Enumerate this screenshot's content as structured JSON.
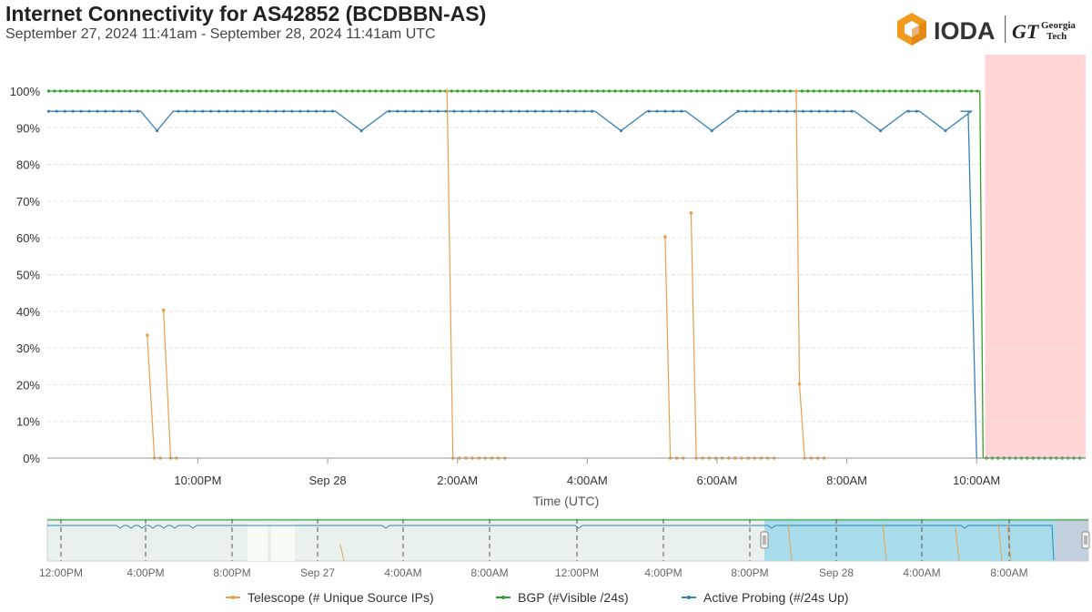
{
  "header": {
    "title": "Internet Connectivity for AS42852 (BCDBBN-AS)",
    "subtitle": "September 27, 2024 11:41am - September 28, 2024 11:41am UTC"
  },
  "logo": {
    "ioda_text": "IODA",
    "gt_mark": "GT",
    "gt_line1": "Georgia",
    "gt_line2": "Tech"
  },
  "colors": {
    "telescope": "#e8a04c",
    "bgp": "#33a02c",
    "active_probing": "#3a7fb8",
    "outage_band": "#ffd5d8",
    "navigator_selection": "#a8dcea"
  },
  "chart_data": {
    "type": "line",
    "title": "Internet Connectivity for AS42852 (BCDBBN-AS)",
    "subtitle": "September 27, 2024 11:41am - September 28, 2024 11:41am UTC",
    "xlabel": "Time (UTC)",
    "ylabel": "",
    "x_unit": "hours_since_2024-09-27T21:00Z",
    "xlim": [
      -1.32,
      14.68
    ],
    "ylim": [
      0,
      100
    ],
    "y_ticks": [
      "0%",
      "10%",
      "20%",
      "30%",
      "40%",
      "50%",
      "60%",
      "70%",
      "80%",
      "90%",
      "100%"
    ],
    "x_ticks": [
      {
        "x": 1,
        "label": "10:00PM"
      },
      {
        "x": 3,
        "label": "Sep 28"
      },
      {
        "x": 5,
        "label": "2:00AM"
      },
      {
        "x": 7,
        "label": "4:00AM"
      },
      {
        "x": 9,
        "label": "6:00AM"
      },
      {
        "x": 11,
        "label": "8:00AM"
      },
      {
        "x": 13,
        "label": "10:00AM"
      }
    ],
    "outage_band": {
      "from": 13.13,
      "to": 14.68
    },
    "grid": true,
    "legend_position": "bottom",
    "series": [
      {
        "name": "Telescope (# Unique Source IPs)",
        "key": "telescope",
        "segments": [
          [
            [
              0.22,
              33.5
            ],
            [
              0.33,
              0
            ],
            [
              0.42,
              0
            ]
          ],
          [
            [
              0.47,
              40.3
            ],
            [
              0.58,
              0
            ],
            [
              0.67,
              0
            ]
          ],
          [
            [
              4.84,
              100
            ],
            [
              4.93,
              0
            ],
            [
              5.03,
              0
            ],
            [
              5.13,
              0
            ],
            [
              5.23,
              0
            ],
            [
              5.33,
              0
            ],
            [
              5.43,
              0
            ],
            [
              5.53,
              0
            ],
            [
              5.63,
              0
            ],
            [
              5.73,
              0
            ]
          ],
          [
            [
              8.2,
              60.3
            ],
            [
              8.28,
              0
            ],
            [
              8.38,
              0
            ],
            [
              8.48,
              0
            ]
          ],
          [
            [
              8.6,
              66.8
            ],
            [
              8.68,
              0
            ],
            [
              8.78,
              0
            ],
            [
              8.88,
              0
            ],
            [
              8.98,
              0
            ],
            [
              9.08,
              0
            ],
            [
              9.18,
              0
            ],
            [
              9.28,
              0
            ],
            [
              9.38,
              0
            ],
            [
              9.48,
              0
            ],
            [
              9.58,
              0
            ],
            [
              9.68,
              0
            ],
            [
              9.78,
              0
            ],
            [
              9.88,
              0
            ]
          ],
          [
            [
              10.22,
              100
            ],
            [
              10.27,
              20.2
            ],
            [
              10.35,
              0
            ],
            [
              10.45,
              0
            ],
            [
              10.55,
              0
            ],
            [
              10.65,
              0
            ]
          ]
        ]
      },
      {
        "name": "BGP (#Visible /24s)",
        "key": "bgp",
        "segments": [
          [
            [
              -1.32,
              100
            ],
            [
              13.05,
              100
            ],
            [
              13.1,
              0
            ],
            [
              14.68,
              0
            ]
          ]
        ]
      },
      {
        "name": "Active Probing (#/24s Up)",
        "key": "active_probing",
        "segments": [
          [
            [
              -1.32,
              94.5
            ],
            [
              0.12,
              94.5
            ],
            [
              0.37,
              89.2
            ],
            [
              0.62,
              94.5
            ],
            [
              3.12,
              94.5
            ],
            [
              3.52,
              89.2
            ],
            [
              3.92,
              94.5
            ],
            [
              7.12,
              94.5
            ],
            [
              7.52,
              89.2
            ],
            [
              7.92,
              94.5
            ],
            [
              8.52,
              94.5
            ],
            [
              8.92,
              89.2
            ],
            [
              9.32,
              94.5
            ],
            [
              11.12,
              94.5
            ],
            [
              11.52,
              89.2
            ],
            [
              11.92,
              94.5
            ],
            [
              12.12,
              94.5
            ],
            [
              12.52,
              89.2
            ],
            [
              12.92,
              94.5
            ],
            [
              12.75,
              94.5
            ],
            [
              12.87,
              94.5
            ],
            [
              13.0,
              0
            ],
            [
              14.68,
              0
            ]
          ]
        ]
      }
    ],
    "navigator": {
      "x_ticks": [
        "12:00PM",
        "4:00PM",
        "8:00PM",
        "Sep 27",
        "4:00AM",
        "8:00AM",
        "12:00PM",
        "4:00PM",
        "8:00PM",
        "Sep 28",
        "4:00AM",
        "8:00AM"
      ]
    }
  },
  "legend": [
    {
      "label": "Telescope (# Unique Source IPs)",
      "color_key": "telescope"
    },
    {
      "label": "BGP (#Visible /24s)",
      "color_key": "bgp"
    },
    {
      "label": "Active Probing (#/24s Up)",
      "color_key": "active_probing"
    }
  ]
}
